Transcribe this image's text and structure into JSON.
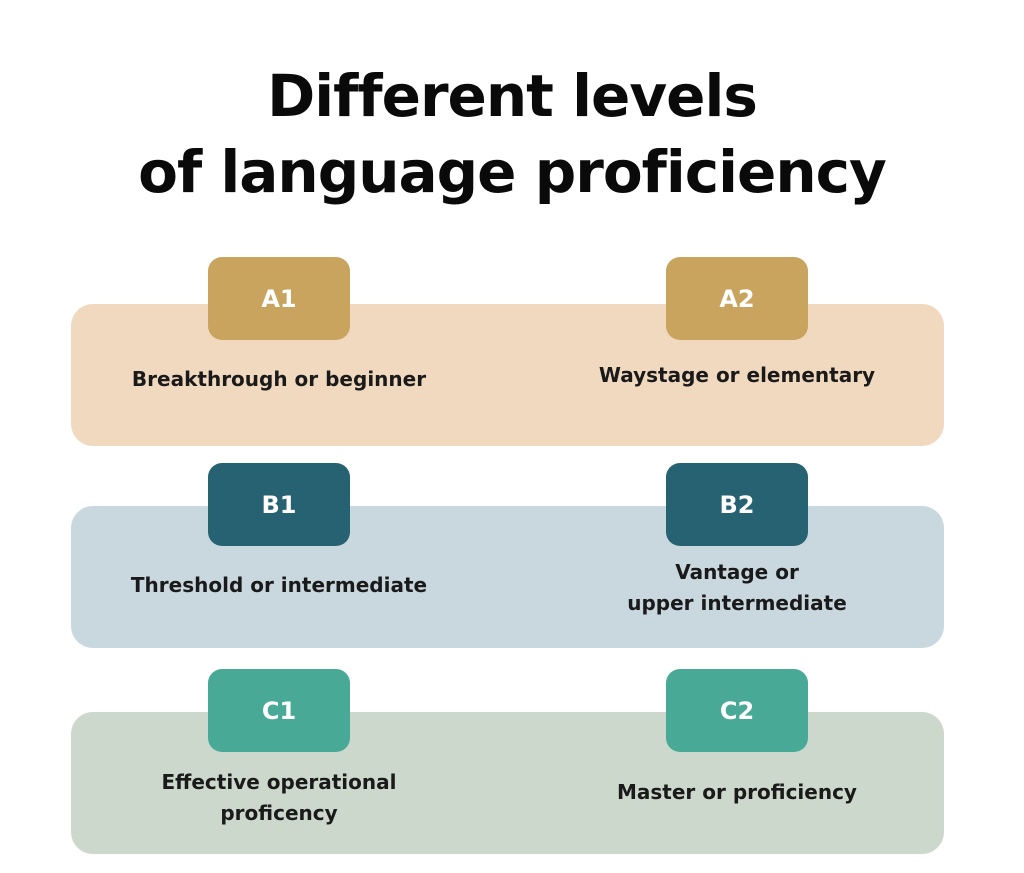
{
  "title": {
    "line1": "Different levels",
    "line2": "of language proficiency"
  },
  "colors": {
    "row_a_band": "#f1d9bf",
    "row_a_badge": "#c9a45e",
    "row_b_band": "#c9d7df",
    "row_b_badge": "#276273",
    "row_c_band": "#cbd8cb",
    "row_c_badge": "#48a996"
  },
  "levels": {
    "a1": {
      "code": "A1",
      "line1": "Breakthrough or beginner",
      "line2": ""
    },
    "a2": {
      "code": "A2",
      "line1": "Waystage or elementary",
      "line2": ""
    },
    "b1": {
      "code": "B1",
      "line1": "Threshold or intermediate",
      "line2": ""
    },
    "b2": {
      "code": "B2",
      "line1": "Vantage or",
      "line2": "upper intermediate"
    },
    "c1": {
      "code": "C1",
      "line1": "Effective operational",
      "line2": "proficency"
    },
    "c2": {
      "code": "C2",
      "line1": "Master or proficiency",
      "line2": ""
    }
  }
}
